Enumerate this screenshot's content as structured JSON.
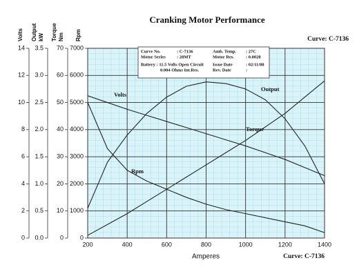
{
  "chart_data": {
    "type": "line",
    "title": "Cranking Motor Performance",
    "curve_label_top": "Curve: C-7136",
    "curve_label_bottom": "Curve: C-7136",
    "xlabel": "Amperes",
    "xlim": [
      200,
      1400
    ],
    "xticks": [
      200,
      400,
      600,
      800,
      1000,
      1200,
      1400
    ],
    "grid": true,
    "axes": [
      {
        "title": "Volts",
        "lim": [
          0,
          14
        ],
        "ticks": [
          0,
          2,
          4,
          6,
          8,
          10,
          12,
          14
        ]
      },
      {
        "title": "Output",
        "unit": "kW",
        "lim": [
          0,
          3.5
        ],
        "ticks": [
          {
            "value": 0,
            "label": "0.0"
          },
          0.5,
          {
            "value": 1,
            "label": "1.0"
          },
          1.5,
          {
            "value": 2,
            "label": "2.0"
          },
          2.5,
          {
            "value": 3,
            "label": "3.0"
          },
          3.5
        ]
      },
      {
        "title": "Torque",
        "unit": "Nm",
        "lim": [
          0,
          70
        ],
        "ticks": [
          0,
          10,
          20,
          30,
          40,
          50,
          60,
          70
        ]
      },
      {
        "title": "Rpm",
        "lim": [
          0,
          7000
        ],
        "ticks": [
          0,
          1000,
          2000,
          3000,
          4000,
          5000,
          6000,
          7000
        ]
      }
    ],
    "x": [
      200,
      300,
      400,
      500,
      600,
      700,
      800,
      900,
      1000,
      1100,
      1200,
      1300,
      1400
    ],
    "series": [
      {
        "name": "Volts",
        "axis": 0,
        "color": "#222222",
        "values": [
          10.5,
          10.0,
          9.5,
          9.05,
          8.6,
          8.15,
          7.7,
          7.25,
          6.8,
          6.3,
          5.8,
          5.2,
          4.6
        ]
      },
      {
        "name": "Output",
        "axis": 1,
        "color": "#222222",
        "values": [
          0.55,
          1.4,
          1.9,
          2.3,
          2.6,
          2.8,
          2.88,
          2.85,
          2.75,
          2.55,
          2.2,
          1.7,
          1.0
        ]
      },
      {
        "name": "Torque",
        "axis": 2,
        "color": "#222222",
        "values": [
          1,
          5,
          9,
          13.5,
          18,
          22.5,
          27,
          31.5,
          36,
          41,
          46,
          52,
          58
        ]
      },
      {
        "name": "Rpm",
        "axis": 3,
        "color": "#222222",
        "values": [
          5000,
          3300,
          2500,
          2100,
          1800,
          1500,
          1250,
          1050,
          900,
          750,
          600,
          450,
          200
        ]
      }
    ],
    "info": [
      [
        "Curve No.",
        ": C-7136",
        "Amb. Temp.",
        ": 27C"
      ],
      [
        "Motor Series",
        ": 28MT",
        "Motor Res.",
        ": 0.0028"
      ],
      [
        "Battery : 11.5 Volts Open Circuit",
        "Issue Date",
        ": 02/11/88"
      ],
      [
        "0.004 Ohms Int.Res.",
        "Rev. Date",
        ":"
      ]
    ]
  }
}
